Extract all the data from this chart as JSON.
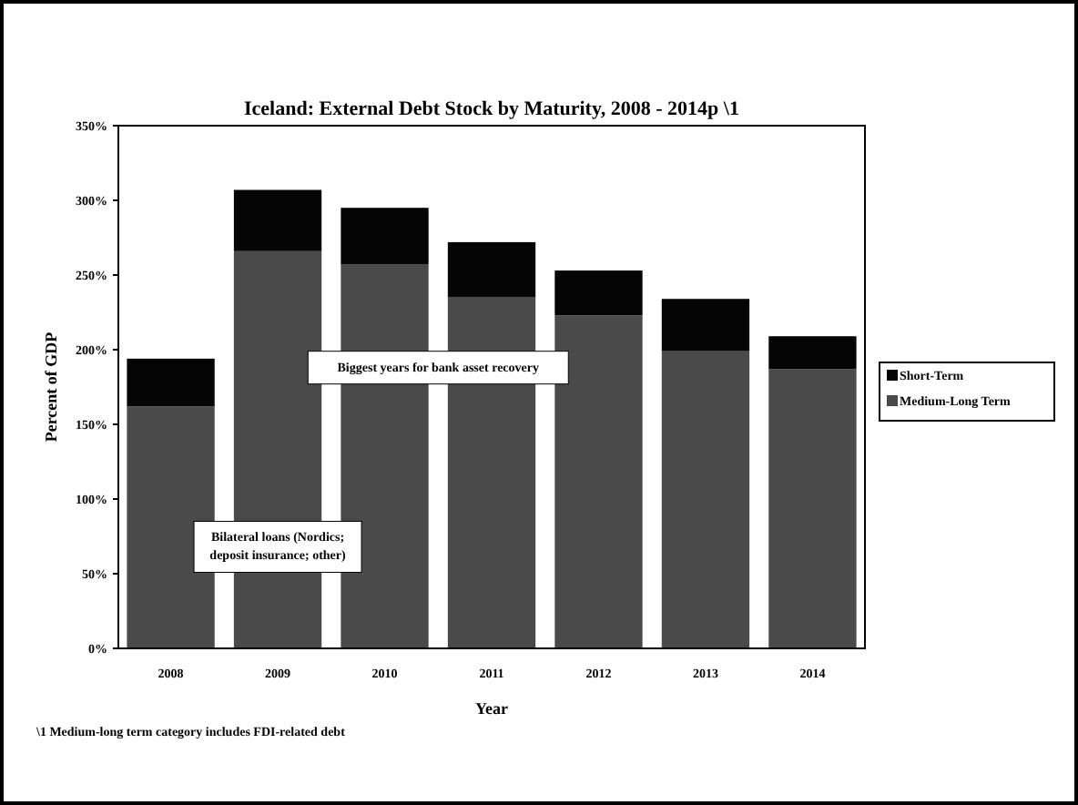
{
  "chart_data": {
    "type": "bar",
    "title": "Iceland: External Debt Stock by Maturity, 2008 - 2014p \\1",
    "xlabel": "Year",
    "ylabel": "Percent of GDP",
    "categories": [
      "2008",
      "2009",
      "2010",
      "2011",
      "2012",
      "2013",
      "2014"
    ],
    "stacked": true,
    "series": [
      {
        "name": "Medium-Long Term",
        "color": "#4a4a4a",
        "values": [
          162,
          266,
          257,
          235,
          223,
          199,
          187
        ]
      },
      {
        "name": "Short-Term",
        "color": "#050505",
        "values": [
          32,
          41,
          38,
          37,
          30,
          35,
          22
        ]
      }
    ],
    "ylim": [
      0,
      350
    ],
    "yticks": [
      {
        "value": 0,
        "label": "0%"
      },
      {
        "value": 50,
        "label": "50%"
      },
      {
        "value": 100,
        "label": "100%"
      },
      {
        "value": 150,
        "label": "150%"
      },
      {
        "value": 200,
        "label": "200%"
      },
      {
        "value": 250,
        "label": "250%"
      },
      {
        "value": 300,
        "label": "300%"
      },
      {
        "value": 350,
        "label": "350%"
      }
    ],
    "legend": "right",
    "annotations": [
      "Biggest years for bank asset recovery",
      "Bilateral loans (Nordics; deposit insurance; other)",
      "\\1 Medium-long term category includes FDI-related debt"
    ]
  }
}
